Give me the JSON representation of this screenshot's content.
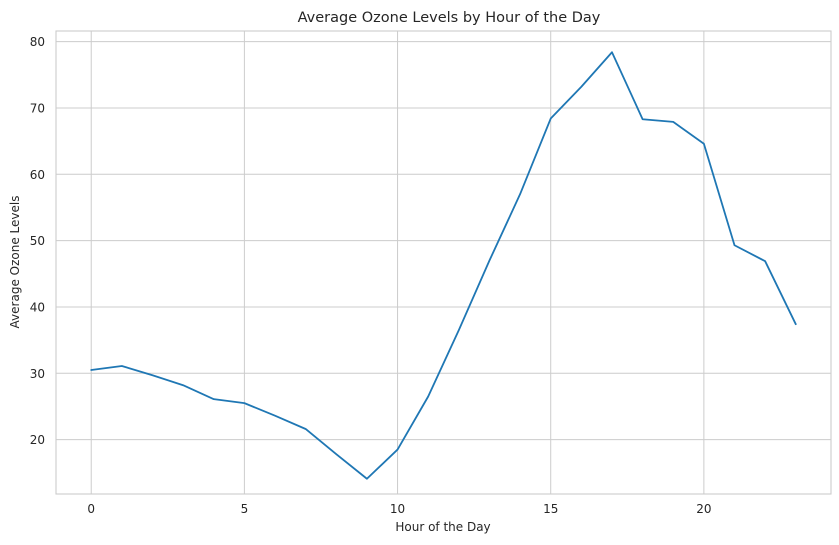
{
  "chart_data": {
    "type": "line",
    "title": "Average Ozone Levels by Hour of the Day",
    "xlabel": "Hour of the Day",
    "ylabel": "Average Ozone Levels",
    "xlim": [
      -1.15,
      24.15
    ],
    "ylim": [
      11.8,
      81.6
    ],
    "xticks": [
      0,
      5,
      10,
      15,
      20
    ],
    "yticks": [
      20,
      30,
      40,
      50,
      60,
      70,
      80
    ],
    "grid": true,
    "legend": "none",
    "series": [
      {
        "color": "#1f77b4",
        "x": [
          0,
          1,
          2,
          3,
          4,
          5,
          6,
          7,
          8,
          9,
          10,
          11,
          12,
          13,
          14,
          15,
          16,
          17,
          18,
          19,
          20,
          21,
          22,
          23
        ],
        "values": [
          30.5,
          31.1,
          29.7,
          28.2,
          26.1,
          25.5,
          23.6,
          21.6,
          17.8,
          14.1,
          18.5,
          26.5,
          36.5,
          47.0,
          57.0,
          68.4,
          73.2,
          78.4,
          68.3,
          67.9,
          64.6,
          49.3,
          46.9,
          37.4
        ]
      }
    ]
  }
}
